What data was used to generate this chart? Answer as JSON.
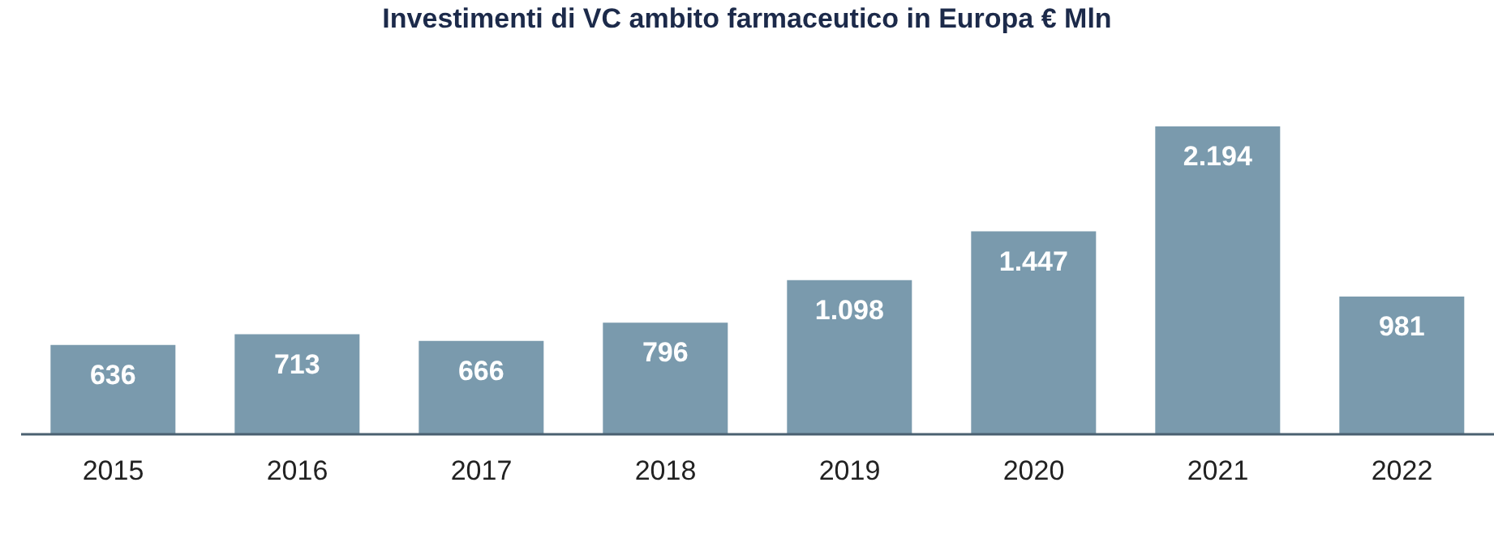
{
  "chart_data": {
    "type": "bar",
    "title": "Investimenti di VC ambito farmaceutico in Europa € Mln",
    "categories": [
      "2015",
      "2016",
      "2017",
      "2018",
      "2019",
      "2020",
      "2021",
      "2022"
    ],
    "values": [
      636,
      713,
      666,
      796,
      1098,
      1447,
      2194,
      981
    ],
    "value_labels": [
      "636",
      "713",
      "666",
      "796",
      "1.098",
      "1.447",
      "2.194",
      "981"
    ],
    "color": "#7a9aad",
    "grid": false,
    "legend": false
  }
}
